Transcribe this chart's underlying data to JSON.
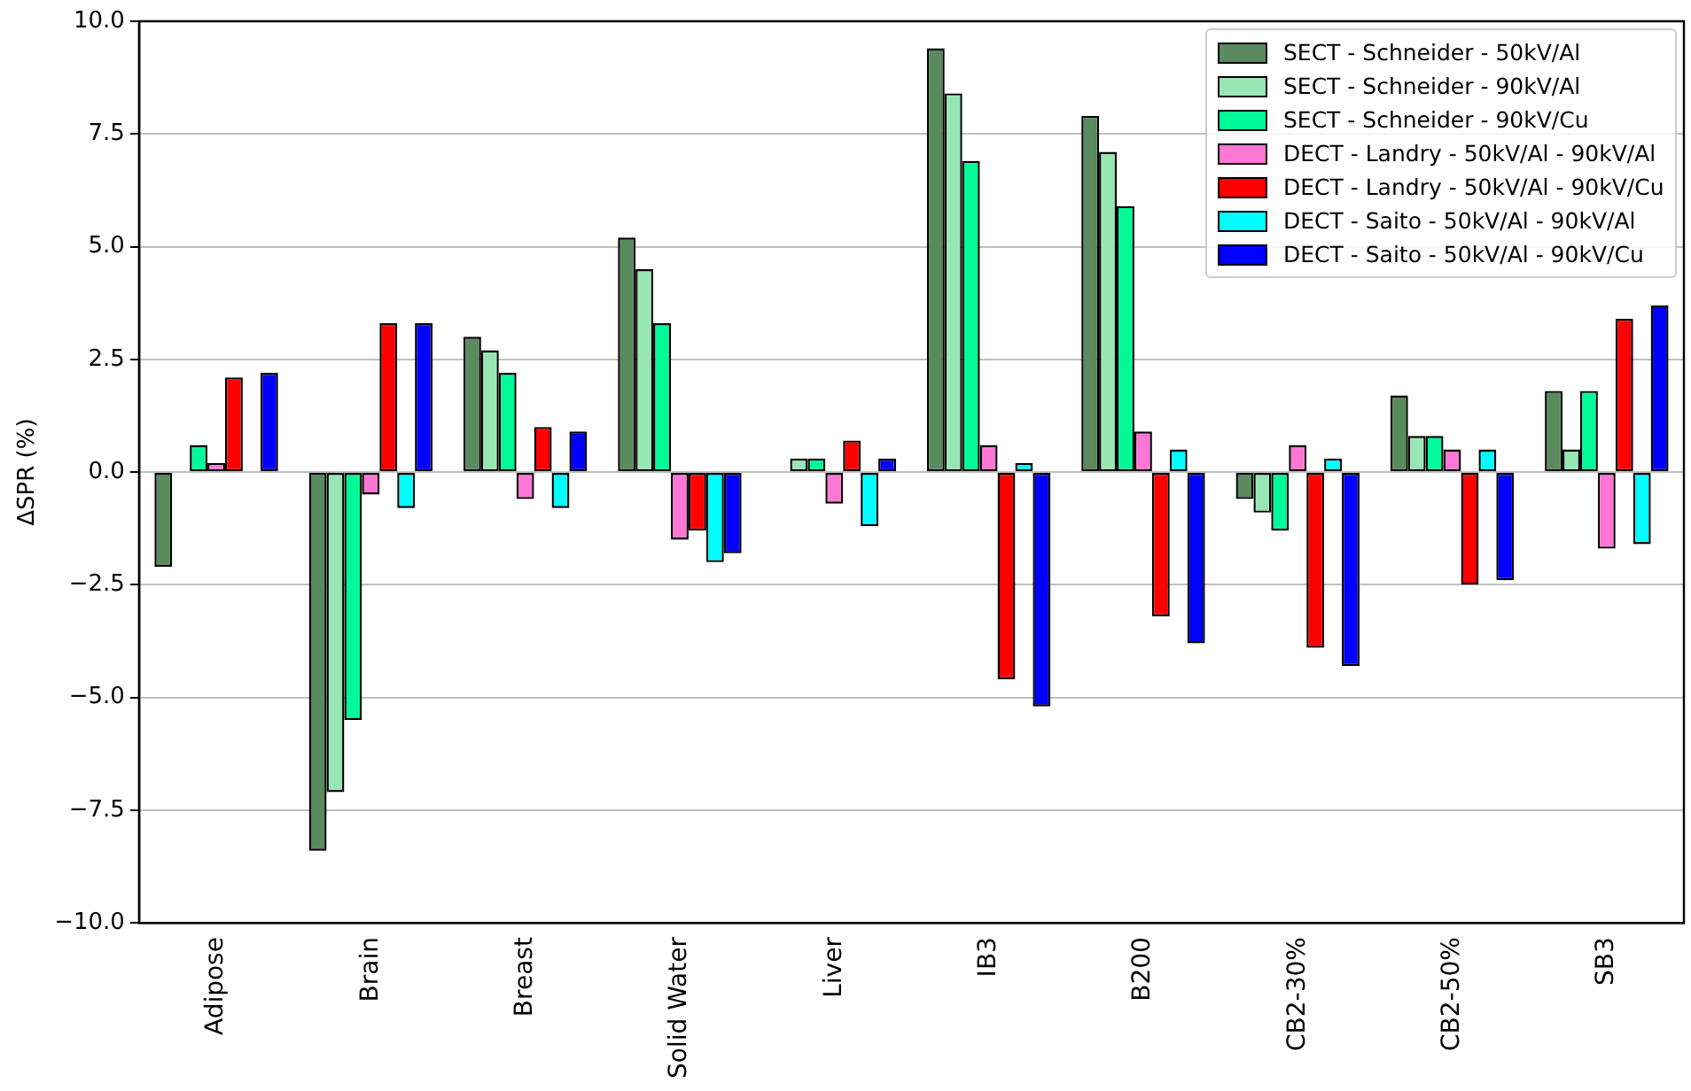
{
  "chart_data": {
    "type": "bar",
    "ylabel": "ΔSPR (%)",
    "categories": [
      "Adipose",
      "Brain",
      "Breast",
      "Solid Water",
      "Liver",
      "IB3",
      "B200",
      "CB2-30%",
      "CB2-50%",
      "SB3"
    ],
    "series": [
      {
        "name": "SECT - Schneider - 50kV/Al",
        "color": "#5a8a5e",
        "values": [
          -2.1,
          -8.4,
          3.0,
          5.2,
          0.0,
          9.4,
          7.9,
          -0.6,
          1.7,
          1.8
        ]
      },
      {
        "name": "SECT - Schneider - 90kV/Al",
        "color": "#98e6b4",
        "values": [
          0.0,
          -7.1,
          2.7,
          4.5,
          0.3,
          8.4,
          7.1,
          -0.9,
          0.8,
          0.5
        ]
      },
      {
        "name": "SECT - Schneider - 90kV/Cu",
        "color": "#00fa9a",
        "values": [
          0.6,
          -5.5,
          2.2,
          3.3,
          0.3,
          6.9,
          5.9,
          -1.3,
          0.8,
          1.8
        ]
      },
      {
        "name": "DECT - Landry - 50kV/Al - 90kV/Al",
        "color": "#ff77d4",
        "values": [
          0.2,
          -0.5,
          -0.6,
          -1.5,
          -0.7,
          0.6,
          0.9,
          0.6,
          0.5,
          -1.7
        ]
      },
      {
        "name": "DECT - Landry - 50kV/Al - 90kV/Cu",
        "color": "#ff0000",
        "values": [
          2.1,
          3.3,
          1.0,
          -1.3,
          0.7,
          -4.6,
          -3.2,
          -3.9,
          -2.5,
          3.4
        ]
      },
      {
        "name": "DECT - Saito - 50kV/Al - 90kV/Al",
        "color": "#00ffff",
        "values": [
          0.0,
          -0.8,
          -0.8,
          -2.0,
          -1.2,
          0.2,
          0.5,
          0.3,
          0.5,
          -1.6
        ]
      },
      {
        "name": "DECT - Saito - 50kV/Al - 90kV/Cu",
        "color": "#0000ff",
        "values": [
          2.2,
          3.3,
          0.9,
          -1.8,
          0.3,
          -5.2,
          -3.8,
          -4.3,
          -2.4,
          3.7
        ]
      }
    ],
    "ylim": [
      -10,
      10
    ],
    "yticks": [
      {
        "value": -10,
        "label": "−10.0"
      },
      {
        "value": -7.5,
        "label": "−7.5"
      },
      {
        "value": -5,
        "label": "−5.0"
      },
      {
        "value": -2.5,
        "label": "−2.5"
      },
      {
        "value": 0,
        "label": "0.0"
      },
      {
        "value": 2.5,
        "label": "2.5"
      },
      {
        "value": 5,
        "label": "5.0"
      },
      {
        "value": 7.5,
        "label": "7.5"
      },
      {
        "value": 10,
        "label": "10.0"
      }
    ],
    "grid": "y",
    "legend": "top right"
  }
}
